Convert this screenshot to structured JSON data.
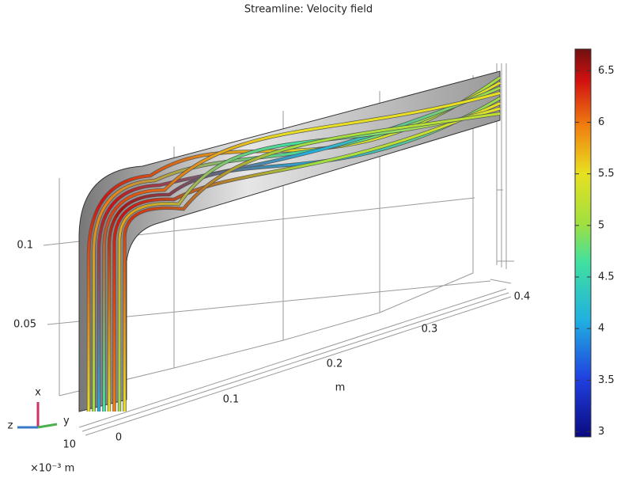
{
  "title": "Streamline: Velocity field",
  "colorbar": {
    "lim": [
      2.95,
      6.71
    ],
    "ticks": [
      3,
      3.5,
      4,
      4.5,
      5,
      5.5,
      6,
      6.5
    ]
  },
  "axes": {
    "vertical_ticks": [
      0.05,
      0.1
    ],
    "depth_ticks": [
      0,
      0.1,
      0.2,
      0.3,
      0.4
    ],
    "depth_label": "m",
    "width_tick": 10,
    "width_unit": "×10⁻³ m"
  },
  "triad": {
    "x": "x",
    "y": "y",
    "z": "z"
  }
}
